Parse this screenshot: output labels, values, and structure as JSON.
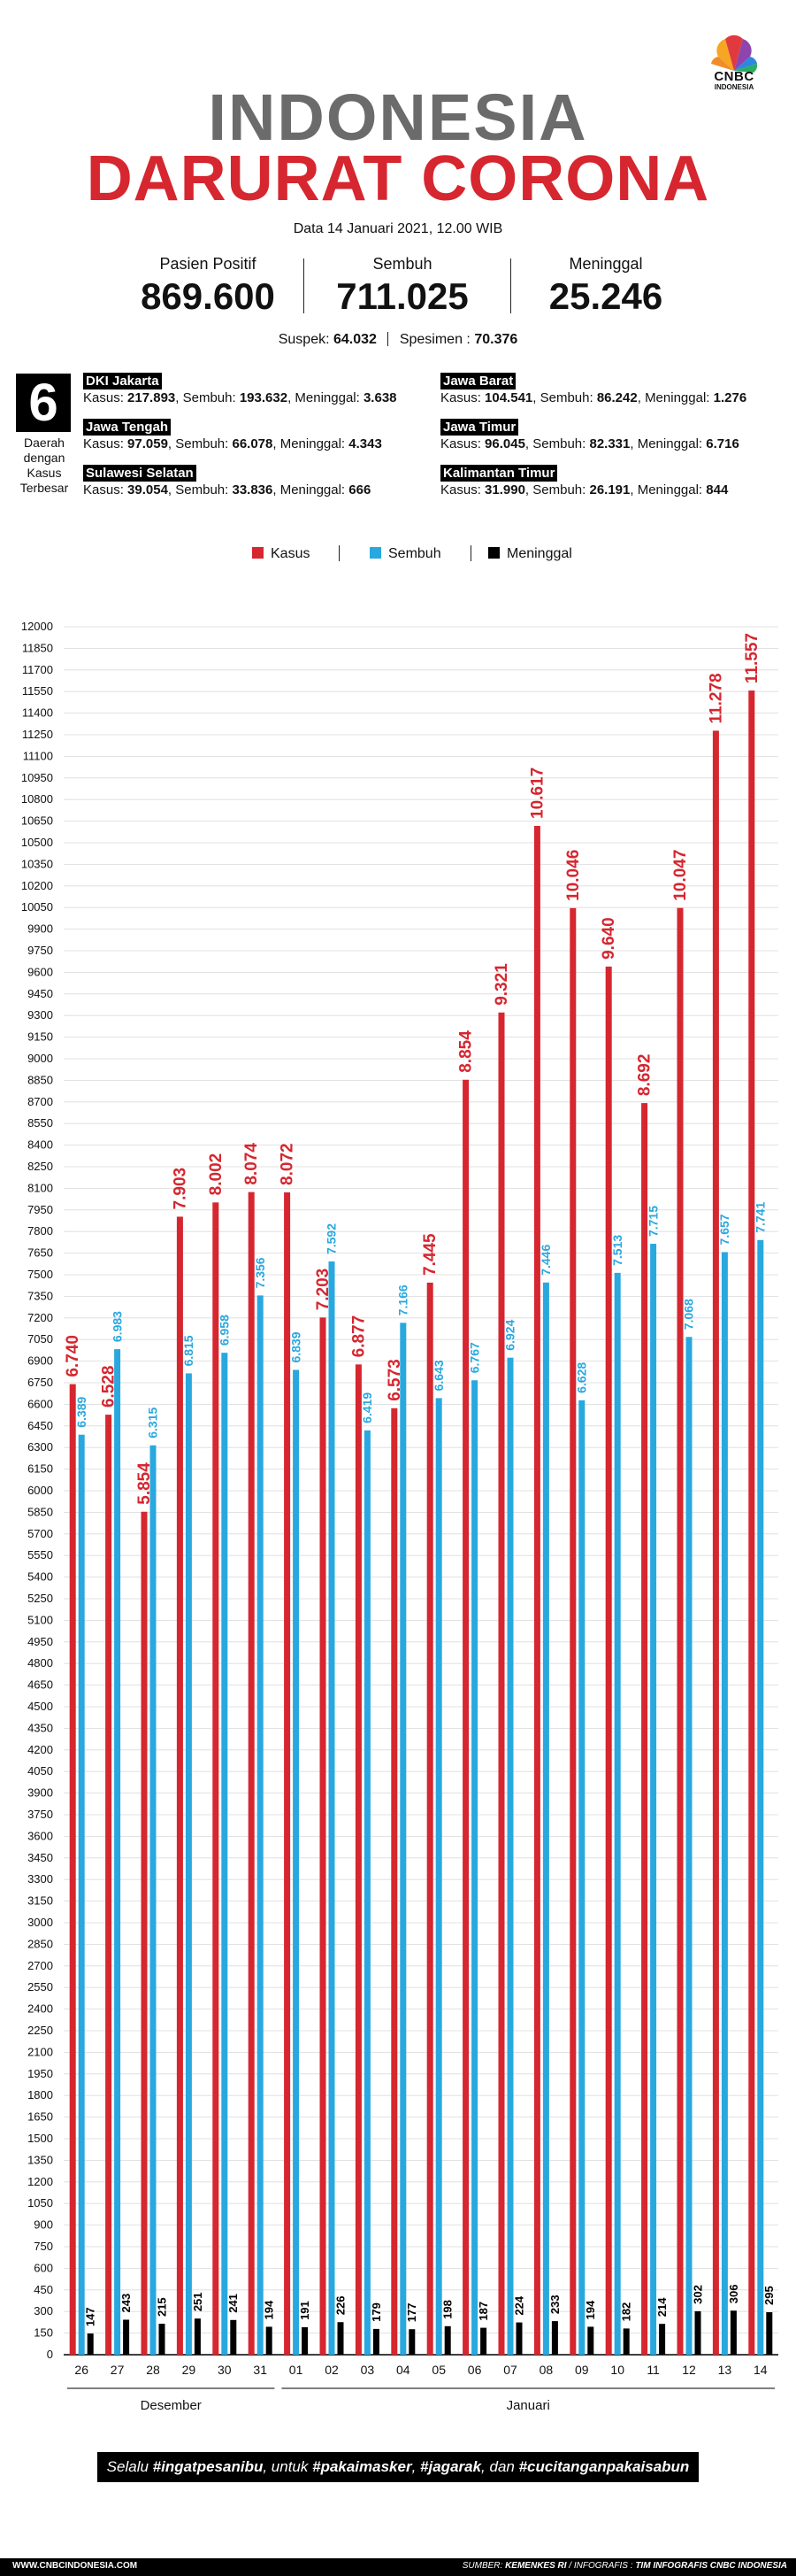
{
  "logo": {
    "text": "CNBC",
    "sub": "INDONESIA"
  },
  "title": {
    "line1": "INDONESIA",
    "line2": "DARURAT CORONA"
  },
  "date": "Data 14 Januari 2021, 12.00 WIB",
  "stats": [
    {
      "label": "Pasien Positif",
      "value": "869.600"
    },
    {
      "label": "Sembuh",
      "value": "711.025"
    },
    {
      "label": "Meninggal",
      "value": "25.246"
    }
  ],
  "suspek": {
    "label": "Suspek:",
    "value": "64.032",
    "label2": "Spesimen :",
    "value2": "70.376"
  },
  "regions_title": {
    "number": "6",
    "line1": "Daerah",
    "line2": "dengan",
    "line3": "Kasus",
    "line4": "Terbesar"
  },
  "regions": [
    {
      "name": "DKI Jakarta",
      "kasus": "217.893",
      "sembuh": "193.632",
      "meninggal": "3.638"
    },
    {
      "name": "Jawa Barat",
      "kasus": "104.541",
      "sembuh": "86.242",
      "meninggal": "1.276"
    },
    {
      "name": "Jawa Tengah",
      "kasus": "97.059",
      "sembuh": "66.078",
      "meninggal": "4.343"
    },
    {
      "name": "Jawa Timur",
      "kasus": "96.045",
      "sembuh": "82.331",
      "meninggal": "6.716"
    },
    {
      "name": "Sulawesi Selatan",
      "kasus": "39.054",
      "sembuh": "33.836",
      "meninggal": "666"
    },
    {
      "name": "Kalimantan Timur",
      "kasus": "31.990",
      "sembuh": "26.191",
      "meninggal": "844"
    }
  ],
  "region_labels": {
    "kasus": "Kasus:",
    "sembuh": "Sembuh:",
    "meninggal": "Meninggal:"
  },
  "colors": {
    "kasus": "#d6262f",
    "sembuh": "#29a8df",
    "meninggal": "#000000",
    "title_gray": "#6b6b6b"
  },
  "chart_data": {
    "type": "bar",
    "categories": [
      "26",
      "27",
      "28",
      "29",
      "30",
      "31",
      "01",
      "02",
      "03",
      "04",
      "05",
      "06",
      "07",
      "08",
      "09",
      "10",
      "11",
      "12",
      "13",
      "14"
    ],
    "month_labels": [
      {
        "label": "Desember",
        "from": 0,
        "to": 5
      },
      {
        "label": "Januari",
        "from": 6,
        "to": 19
      }
    ],
    "series": [
      {
        "name": "Kasus",
        "values": [
          6740,
          6528,
          5854,
          7903,
          8002,
          8074,
          8072,
          7203,
          6877,
          6573,
          7445,
          8854,
          9321,
          10617,
          10046,
          9640,
          8692,
          10047,
          11278,
          11557
        ],
        "labels": [
          "6.740",
          "6.528",
          "5.854",
          "7.903",
          "8.002",
          "8.074",
          "8.072",
          "7.203",
          "6.877",
          "6.573",
          "7.445",
          "8.854",
          "9.321",
          "10.617",
          "10.046",
          "9.640",
          "8.692",
          "10.047",
          "11.278",
          "11.557"
        ]
      },
      {
        "name": "Sembuh",
        "values": [
          6389,
          6983,
          6315,
          6815,
          6958,
          7356,
          6839,
          7592,
          6419,
          7166,
          6643,
          6767,
          6924,
          7446,
          6628,
          7513,
          7715,
          7068,
          7657,
          7741
        ],
        "labels": [
          "6.389",
          "6.983",
          "6.315",
          "6.815",
          "6.958",
          "7.356",
          "6.839",
          "7.592",
          "6.419",
          "7.166",
          "6.643",
          "6.767",
          "6.924",
          "7.446",
          "6.628",
          "7.513",
          "7.715",
          "7.068",
          "7.657",
          "7.741"
        ]
      },
      {
        "name": "Meninggal",
        "values": [
          147,
          243,
          215,
          251,
          241,
          194,
          191,
          226,
          179,
          177,
          198,
          187,
          224,
          233,
          194,
          182,
          214,
          302,
          306,
          295
        ],
        "labels": [
          "147",
          "243",
          "215",
          "251",
          "241",
          "194",
          "191",
          "226",
          "179",
          "177",
          "198",
          "187",
          "224",
          "233",
          "194",
          "182",
          "214",
          "302",
          "306",
          "295"
        ]
      }
    ],
    "ylim": [
      0,
      12000
    ],
    "ytick_step": 150,
    "grid": true,
    "legend": "top-center"
  },
  "footnote": {
    "pre": "Selalu ",
    "t1": "#ingatpesanibu",
    "m1": ", untuk ",
    "t2": "#pakaimasker",
    "m2": ", ",
    "t3": "#jagarak",
    "m3": ", dan ",
    "t4": "#cucitanganpakaisabun"
  },
  "footer": {
    "site": "WWW.CNBCINDONESIA.COM",
    "source_pre": "SUMBER: ",
    "source": "KEMENKES RI",
    "source_post": " / INFOGRAFIS : ",
    "team": "TIM INFOGRAFIS CNBC INDONESIA"
  }
}
